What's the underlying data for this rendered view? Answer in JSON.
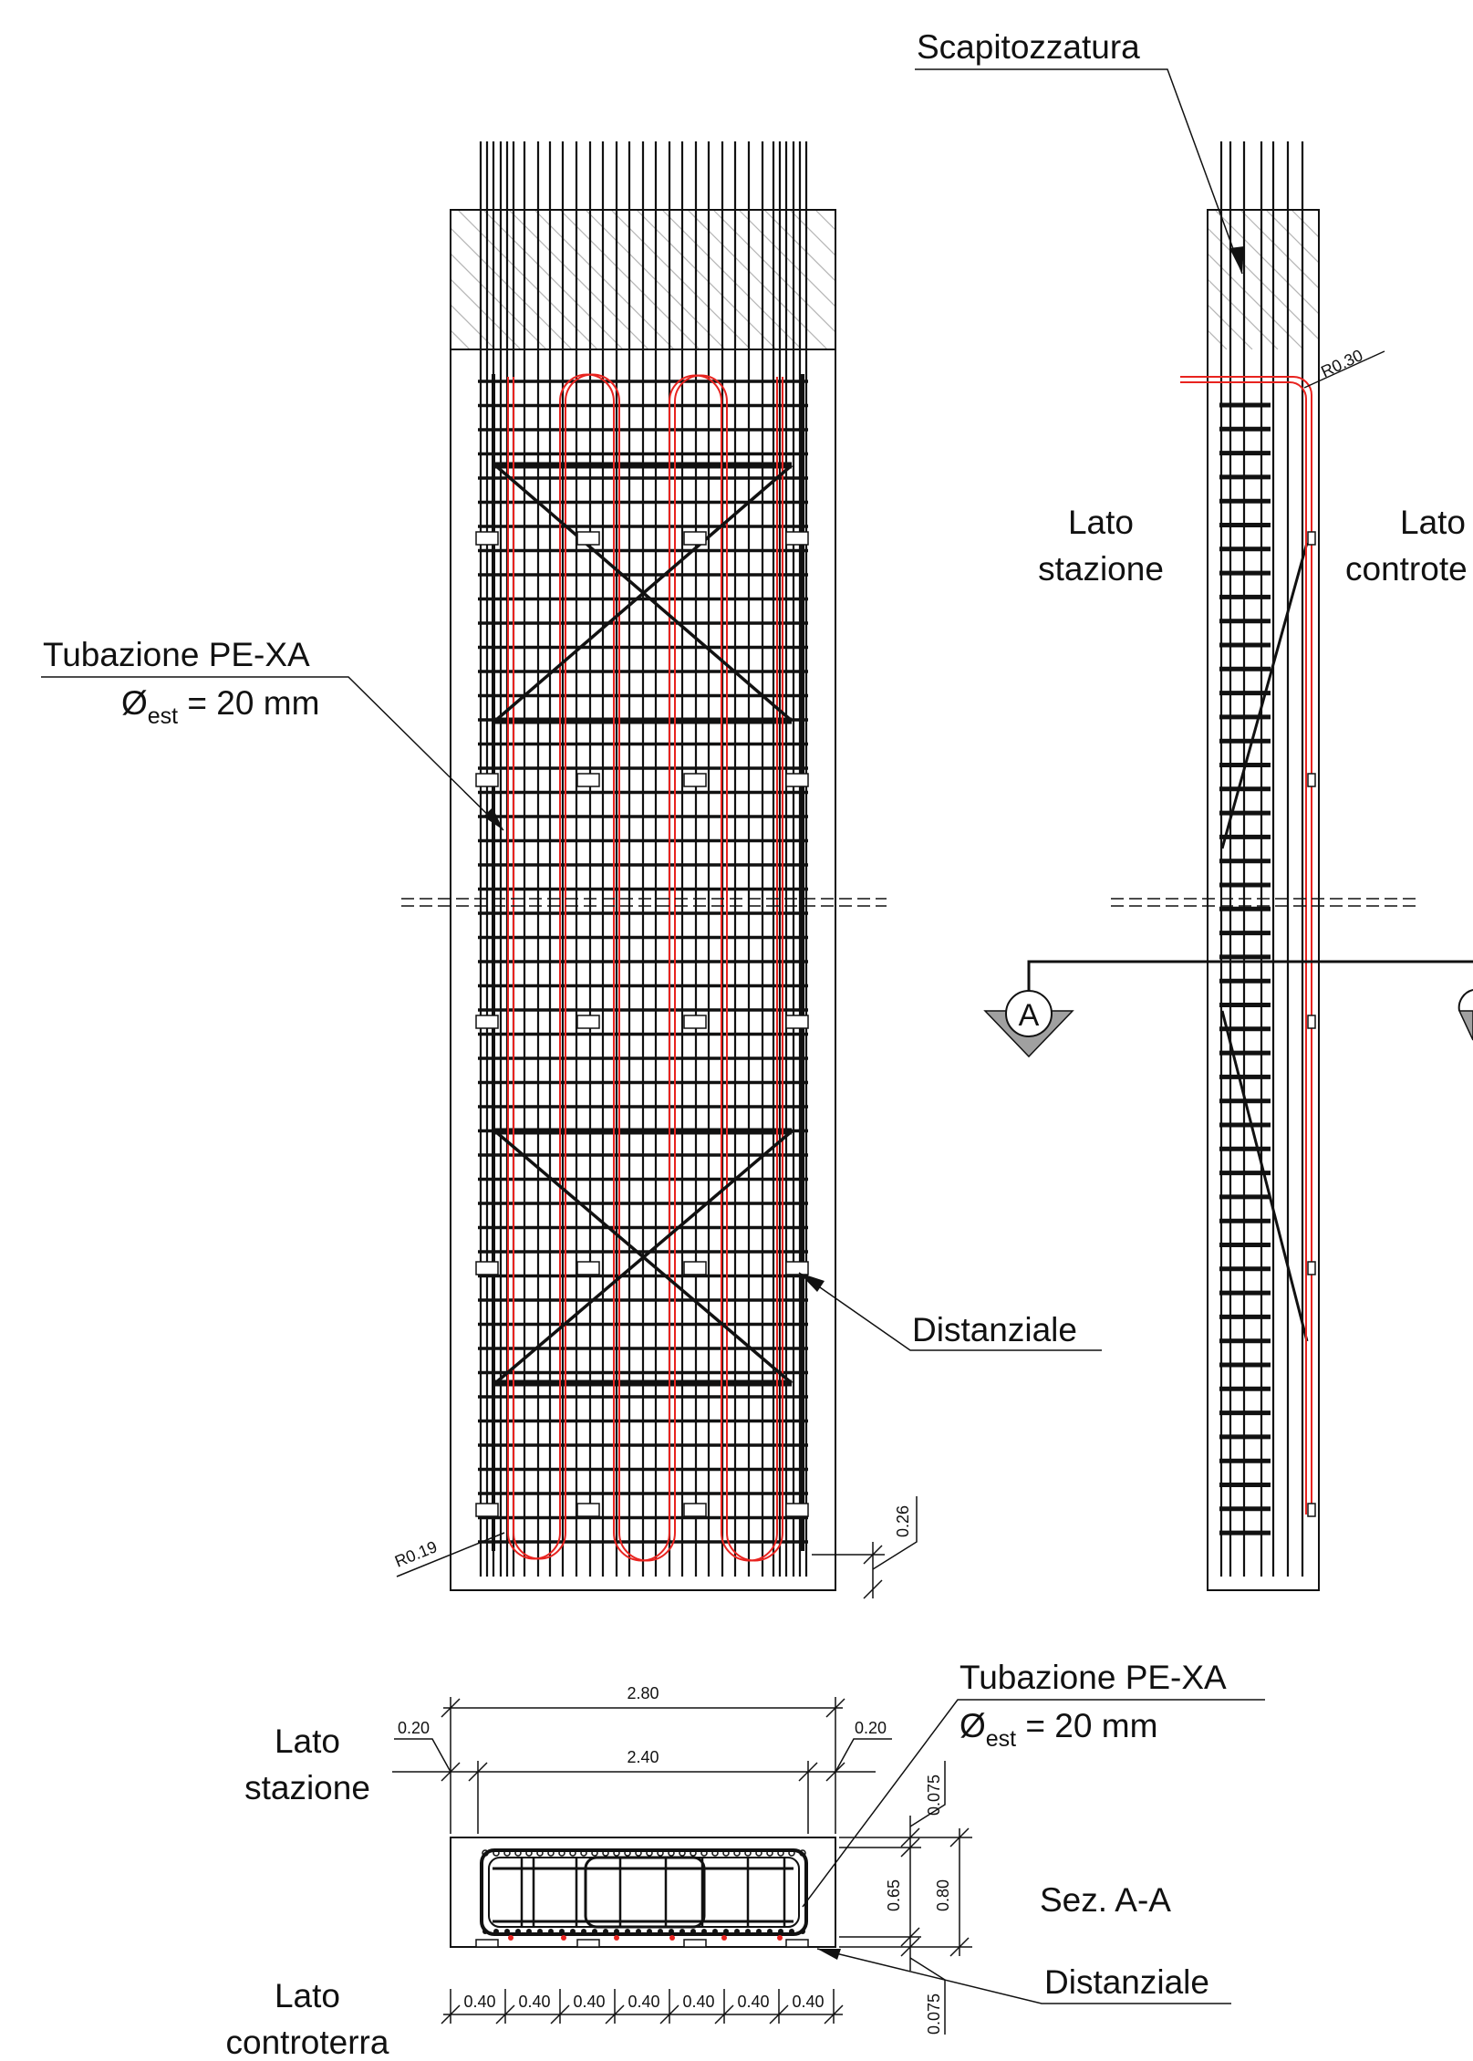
{
  "labels": {
    "scapitozzatura": "Scapitozzatura",
    "tubazione_1": "Tubazione PE-XA",
    "diam_1_symbol": "Ø",
    "diam_1_sub": "est",
    "diam_1_rest": " = 20 mm",
    "tubazione_2": "Tubazione PE-XA",
    "diam_2_symbol": "Ø",
    "diam_2_sub": "est",
    "diam_2_rest": " = 20 mm",
    "distanziale_1": "Distanziale",
    "distanziale_2": "Distanziale",
    "lato_stazione_side_l1": "Lato",
    "lato_stazione_side_l2": "stazione",
    "lato_controterra_side_l1": "Lato",
    "lato_controterra_side_l2": "controte",
    "lato_stazione_sec_l1": "Lato",
    "lato_stazione_sec_l2": "stazione",
    "lato_controterra_sec_l1": "Lato",
    "lato_controterra_sec_l2": "controterra",
    "section_marker": "A",
    "section_title": "Sez. A-A"
  },
  "dimensions": {
    "r_side": "R0.30",
    "r_front": "R0.19",
    "bottom_cover": "0.26",
    "total_width": "2.80",
    "inner_width": "2.40",
    "cover_left": "0.20",
    "cover_right": "0.20",
    "cover_top": "0.075",
    "cover_bottom": "0.075",
    "inner_depth": "0.65",
    "total_depth": "0.80",
    "spacings": [
      "0.40",
      "0.40",
      "0.40",
      "0.40",
      "0.40",
      "0.40",
      "0.40"
    ]
  },
  "colors": {
    "line": "#111111",
    "pipe": "#e8231f",
    "hatch": "#b5b5b5",
    "arrowFill": "#a0a0a0"
  }
}
